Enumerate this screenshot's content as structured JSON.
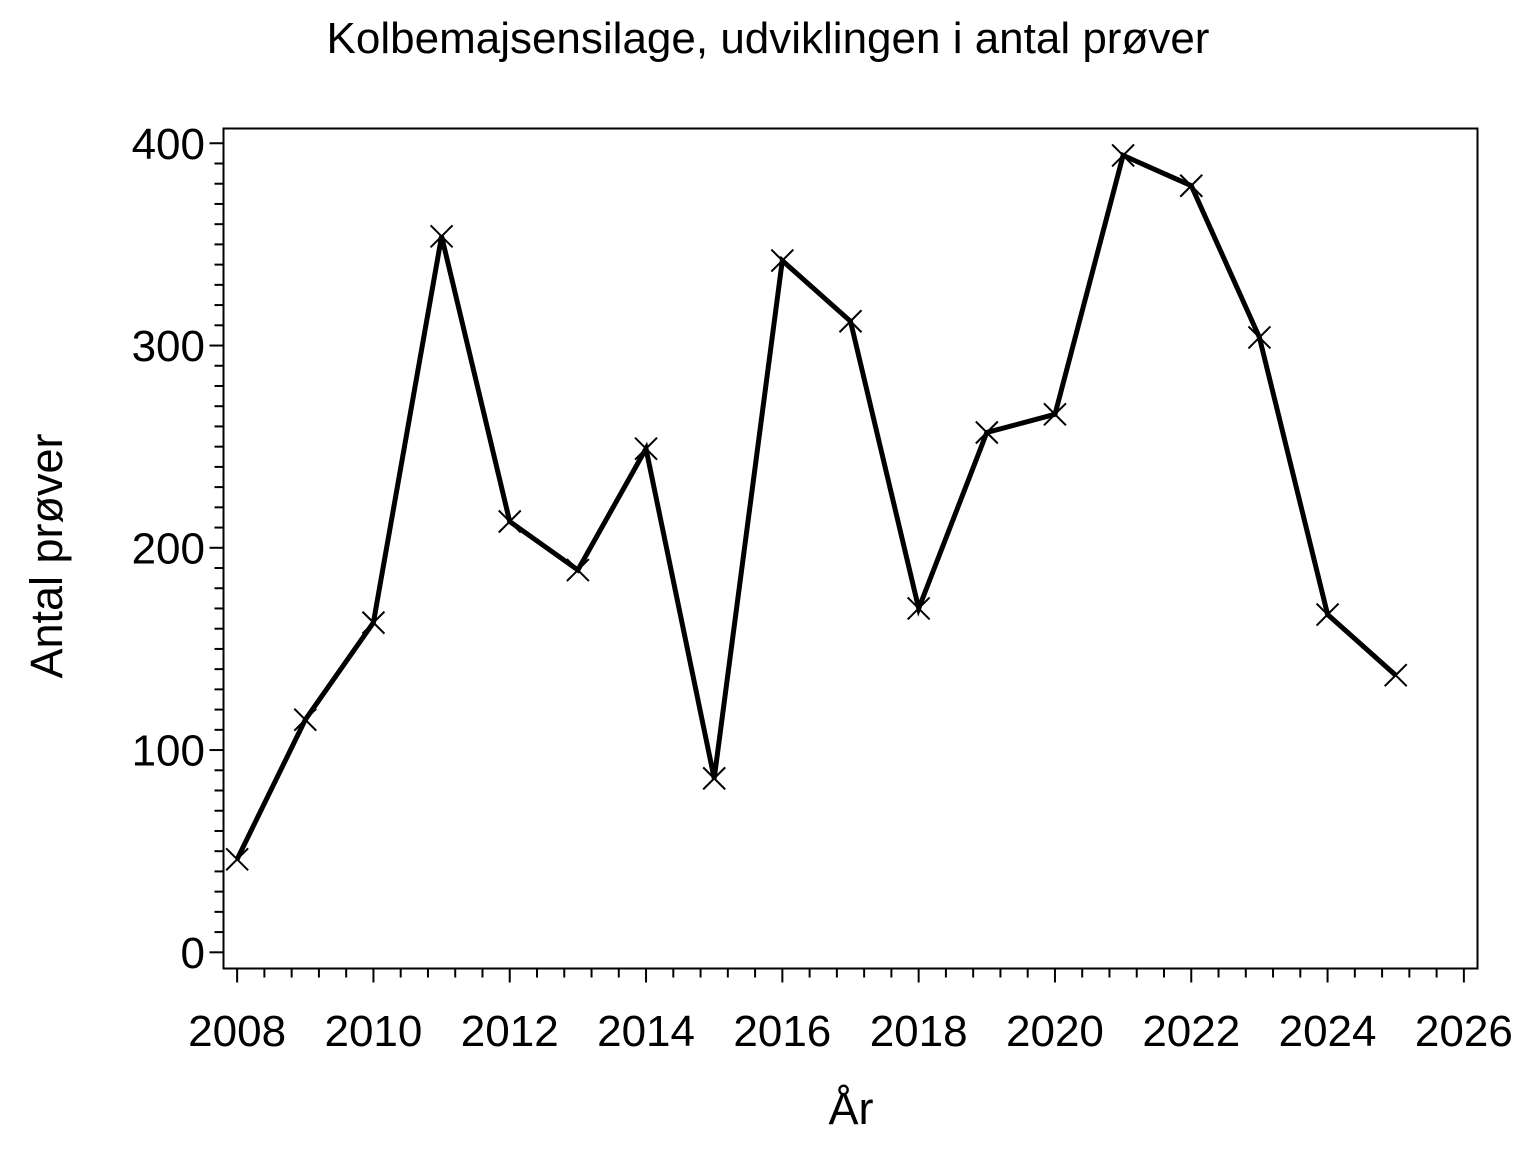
{
  "page": {
    "background": "#ffffff",
    "text_color": "#000000"
  },
  "chart_data": {
    "type": "line",
    "title": "Kolbemajsensilage, udviklingen i antal prøver",
    "xlabel": "År",
    "ylabel": "Antal prøver",
    "x": [
      2008,
      2009,
      2010,
      2011,
      2012,
      2013,
      2014,
      2015,
      2016,
      2017,
      2018,
      2019,
      2020,
      2021,
      2022,
      2023,
      2024,
      2025
    ],
    "values": [
      46,
      115,
      163,
      354,
      213,
      189,
      249,
      86,
      342,
      312,
      170,
      257,
      266,
      394,
      379,
      304,
      167,
      137
    ],
    "series_name": "Antal prøver",
    "marker": "x",
    "line_color": "#000000",
    "background": "#ffffff",
    "x_ticks_major": [
      2008,
      2010,
      2012,
      2014,
      2016,
      2018,
      2020,
      2022,
      2024,
      2026
    ],
    "x_minor_step": 0.4,
    "y_ticks_major": [
      0,
      100,
      200,
      300,
      400
    ],
    "y_minor_step": 10,
    "xlim": [
      2007.8,
      2026.2
    ],
    "ylim": [
      -8,
      407.3
    ],
    "grid": false,
    "legend": "none"
  }
}
